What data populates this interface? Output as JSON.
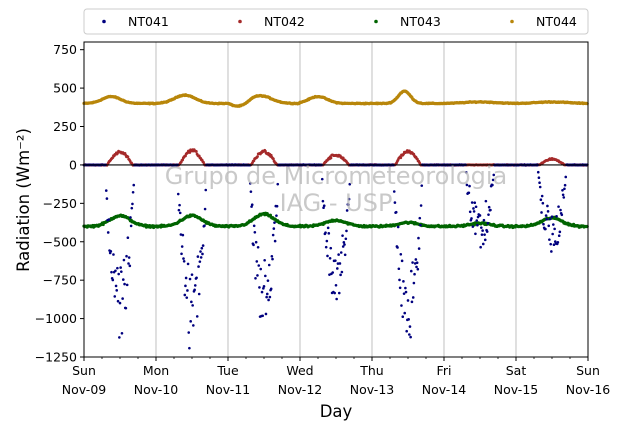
{
  "chart_data": {
    "type": "scatter",
    "xlabel": "Day",
    "ylabel": "Radiation",
    "ylabel_unit": "(Wm⁻²)",
    "x_ticks": [
      {
        "day": "Sun",
        "date": "Nov-09"
      },
      {
        "day": "Mon",
        "date": "Nov-10"
      },
      {
        "day": "Tue",
        "date": "Nov-11"
      },
      {
        "day": "Wed",
        "date": "Nov-12"
      },
      {
        "day": "Thu",
        "date": "Nov-13"
      },
      {
        "day": "Fri",
        "date": "Nov-14"
      },
      {
        "day": "Sat",
        "date": "Nov-15"
      },
      {
        "day": "Sun",
        "date": "Nov-16"
      }
    ],
    "xlim": [
      "Nov-09",
      "Nov-16"
    ],
    "ylim": [
      -1250,
      800
    ],
    "y_ticks": [
      750,
      500,
      250,
      0,
      -250,
      -500,
      -750,
      -1000,
      -1250
    ],
    "y_tick_labels": [
      "750",
      "500",
      "250",
      "0",
      "−250",
      "−500",
      "−750",
      "−1000",
      "−1250"
    ],
    "grid": "vertical",
    "legend_position": "top",
    "watermark": [
      "Grupo de Micrometeorologia",
      "IAG - USP"
    ],
    "series": [
      {
        "name": "NT041",
        "color": "#00007f",
        "baseline": 0,
        "daily_min": [
          -1130,
          -1230,
          -1080,
          -960,
          -1170,
          -560,
          -590
        ]
      },
      {
        "name": "NT042",
        "color": "#a52a2a",
        "baseline": 0,
        "daily_max": [
          95,
          105,
          100,
          75,
          100,
          0,
          45
        ]
      },
      {
        "name": "NT043",
        "color": "#006400",
        "baseline": -400,
        "daily_peak": [
          -330,
          -330,
          -320,
          -360,
          -375,
          -380,
          -345
        ]
      },
      {
        "name": "NT044",
        "color": "#b8860b",
        "baseline": 400,
        "daily_peak": [
          445,
          455,
          450,
          445,
          480,
          410,
          410
        ]
      }
    ]
  }
}
